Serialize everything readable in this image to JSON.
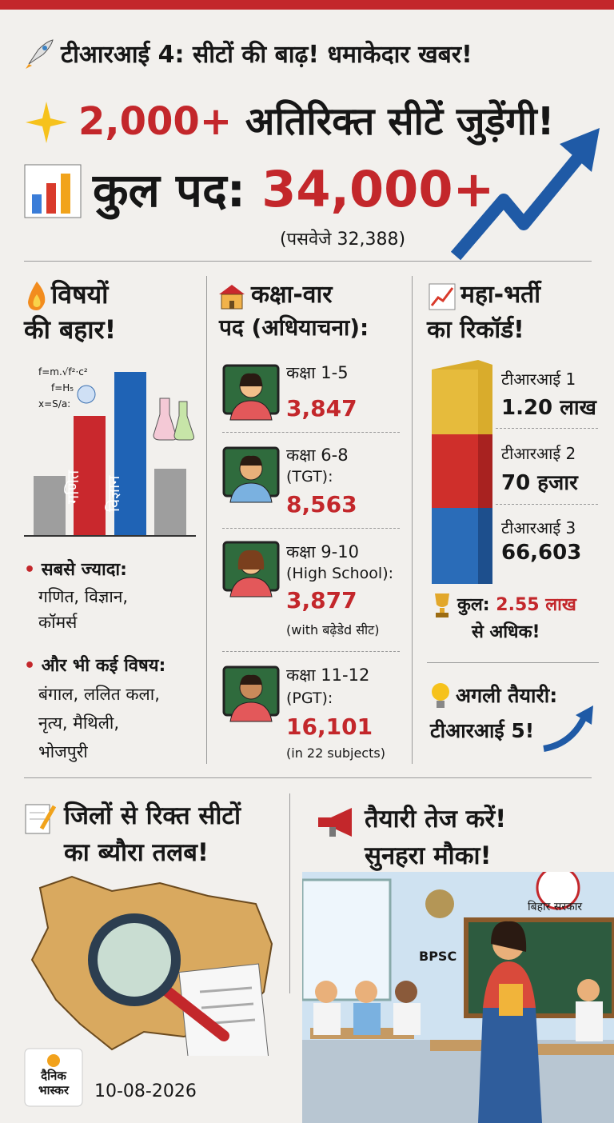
{
  "header": {
    "title": "टीआरआई 4: सीटों की बाढ़! धमाकेदार खबर!"
  },
  "headline": {
    "number": "2,000+",
    "text": "अतिरिक्त सीटें जुड़ेंगी!"
  },
  "total": {
    "label": "कुल पद:",
    "value": "34,000+",
    "note": "(पसवेजे 32,388)"
  },
  "subjects": {
    "title": [
      "विषयों",
      "की बहार!"
    ],
    "formulas": [
      "f=m.√f²·c²",
      "f=H₅",
      "x=S/a:"
    ],
    "bar_labels": [
      "गणित",
      "विज्ञान"
    ],
    "bullets": [
      {
        "label": "सबसे ज्यादा:",
        "text": [
          "गणित, विज्ञान,",
          "कॉमर्स"
        ]
      },
      {
        "label": "और भी कई विषय:",
        "text": [
          "बंगाल, ललित कला,",
          "नृत्य, मैथिली,",
          "भोजपुरी"
        ]
      }
    ]
  },
  "classes": {
    "title": [
      "कक्षा-वार",
      "पद (अधियाचना):"
    ],
    "items": [
      {
        "grade": "कक्षा 1-5",
        "value": "3,847"
      },
      {
        "grade": "कक्षा 6-8",
        "sub": "(TGT):",
        "value": "8,563"
      },
      {
        "grade": "कक्षा 9-10",
        "sub": "(High School):",
        "value": "3,877",
        "note": "(with बढ़ेडेd सीट)"
      },
      {
        "grade": "कक्षा 11-12",
        "sub": "(PGT):",
        "value": "16,101",
        "note": "(in 22 subjects)"
      }
    ]
  },
  "record": {
    "title": [
      "महा-भर्ती",
      "का रिकॉर्ड!"
    ],
    "items": [
      {
        "name": "टीआरआई 1",
        "value": "1.20 लाख"
      },
      {
        "name": "टीआरआई 2",
        "value": "70 हजार"
      },
      {
        "name": "टीआरआई 3",
        "value": "66,603"
      }
    ],
    "total_label": "कुल:",
    "total_value": "2.55 लाख",
    "total_suffix": "से अधिक!",
    "next": [
      "अगली तैयारी:",
      "टीआरआई 5!"
    ]
  },
  "districts": {
    "title": [
      "जिलों से रिक्त सीटों",
      "का ब्यौरा तलब!"
    ]
  },
  "logo": [
    "दैनिक",
    "भास्कर"
  ],
  "date": "10-08-2026",
  "prepare": {
    "title": [
      "तैयारी तेज करें!",
      "सुनहरा मौका!"
    ],
    "emblem": "बिहार सरकार",
    "bpsc": "BPSC"
  }
}
